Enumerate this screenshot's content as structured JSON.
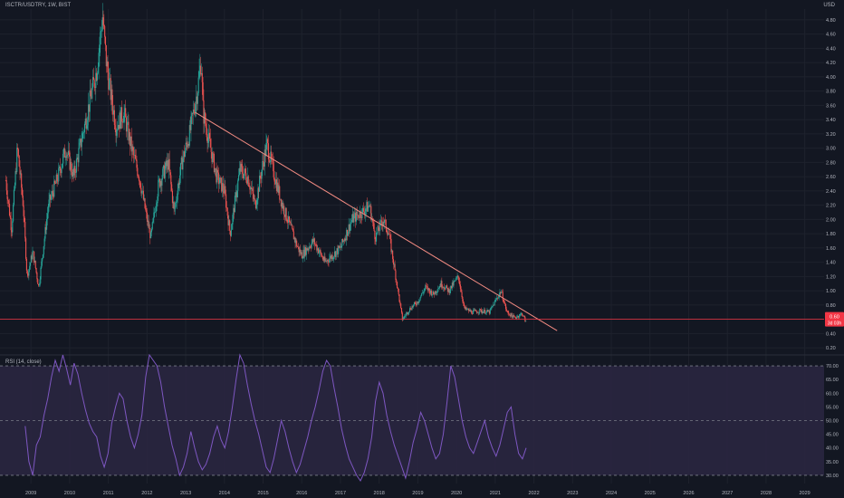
{
  "header": {
    "symbol_label": "ISCTR/USDTRY, 1W, BIST",
    "currency": "USD"
  },
  "price_badges": {
    "last": "0.60",
    "countdown": "3d 03h"
  },
  "rsi_panel": {
    "label": "RSI (14, close)"
  },
  "colors": {
    "bg": "#131722",
    "up": "#26a69a",
    "down": "#ef5350",
    "trendline": "#f28b82",
    "hline": "#f23645",
    "rsi_line": "#7e57c2",
    "rsi_band": "#2a2640",
    "grid": "#1e222d",
    "text": "#b2b5be"
  },
  "chart_data": [
    {
      "type": "candlestick",
      "title": "ISCTR/USDTRY, 1W, BIST",
      "ylabel": "USD",
      "ylim": [
        0.1,
        4.95
      ],
      "y_ticks": [
        0.2,
        0.4,
        0.6,
        0.8,
        1.0,
        1.2,
        1.4,
        1.6,
        1.8,
        2.0,
        2.2,
        2.4,
        2.6,
        2.8,
        3.0,
        3.2,
        3.4,
        3.6,
        3.8,
        4.0,
        4.2,
        4.4,
        4.6,
        4.8
      ],
      "x_ticks": [
        "2009",
        "2010",
        "2011",
        "2012",
        "2013",
        "2014",
        "2015",
        "2016",
        "2017",
        "2018",
        "2019",
        "2020",
        "2021",
        "2022",
        "2023",
        "2024",
        "2025",
        "2026",
        "2027",
        "2028",
        "2029"
      ],
      "x_tick_years": [
        2009,
        2010,
        2011,
        2012,
        2013,
        2014,
        2015,
        2016,
        2017,
        2018,
        2019,
        2020,
        2021,
        2022,
        2023,
        2024,
        2025,
        2026,
        2027,
        2028,
        2029
      ],
      "xlim": [
        2008.2,
        2029.5
      ],
      "price_path": [
        [
          2008.35,
          2.55
        ],
        [
          2008.5,
          1.85
        ],
        [
          2008.65,
          3.0
        ],
        [
          2008.8,
          2.2
        ],
        [
          2008.9,
          1.2
        ],
        [
          2009.05,
          1.55
        ],
        [
          2009.2,
          1.05
        ],
        [
          2009.45,
          2.2
        ],
        [
          2009.7,
          2.6
        ],
        [
          2009.9,
          3.0
        ],
        [
          2010.1,
          2.6
        ],
        [
          2010.3,
          3.1
        ],
        [
          2010.5,
          3.6
        ],
        [
          2010.7,
          4.1
        ],
        [
          2010.85,
          4.85
        ],
        [
          2010.95,
          4.2
        ],
        [
          2011.05,
          3.8
        ],
        [
          2011.2,
          3.3
        ],
        [
          2011.4,
          3.5
        ],
        [
          2011.6,
          3.0
        ],
        [
          2011.8,
          2.6
        ],
        [
          2012.0,
          2.0
        ],
        [
          2012.1,
          1.75
        ],
        [
          2012.3,
          2.5
        ],
        [
          2012.55,
          2.8
        ],
        [
          2012.7,
          2.1
        ],
        [
          2012.9,
          2.8
        ],
        [
          2013.1,
          3.2
        ],
        [
          2013.3,
          3.8
        ],
        [
          2013.4,
          4.25
        ],
        [
          2013.45,
          3.5
        ],
        [
          2013.6,
          3.1
        ],
        [
          2013.8,
          2.6
        ],
        [
          2014.0,
          2.4
        ],
        [
          2014.15,
          1.8
        ],
        [
          2014.4,
          2.7
        ],
        [
          2014.6,
          2.6
        ],
        [
          2014.8,
          2.2
        ],
        [
          2015.0,
          2.8
        ],
        [
          2015.1,
          3.05
        ],
        [
          2015.3,
          2.6
        ],
        [
          2015.5,
          2.2
        ],
        [
          2015.7,
          1.9
        ],
        [
          2015.9,
          1.6
        ],
        [
          2016.0,
          1.5
        ],
        [
          2016.3,
          1.7
        ],
        [
          2016.6,
          1.4
        ],
        [
          2016.8,
          1.5
        ],
        [
          2017.0,
          1.6
        ],
        [
          2017.3,
          2.0
        ],
        [
          2017.55,
          2.1
        ],
        [
          2017.75,
          2.2
        ],
        [
          2017.9,
          1.75
        ],
        [
          2018.1,
          2.0
        ],
        [
          2018.25,
          1.8
        ],
        [
          2018.4,
          1.3
        ],
        [
          2018.6,
          0.6
        ],
        [
          2018.8,
          0.75
        ],
        [
          2019.0,
          0.85
        ],
        [
          2019.2,
          1.05
        ],
        [
          2019.4,
          0.95
        ],
        [
          2019.6,
          1.1
        ],
        [
          2019.8,
          1.0
        ],
        [
          2020.05,
          1.2
        ],
        [
          2020.2,
          0.75
        ],
        [
          2020.4,
          0.7
        ],
        [
          2020.6,
          0.72
        ],
        [
          2020.85,
          0.7
        ],
        [
          2021.0,
          0.85
        ],
        [
          2021.15,
          1.0
        ],
        [
          2021.3,
          0.7
        ],
        [
          2021.5,
          0.62
        ],
        [
          2021.7,
          0.68
        ],
        [
          2021.8,
          0.55
        ]
      ],
      "trendline": {
        "from": [
          2013.25,
          3.5
        ],
        "to": [
          2022.6,
          0.44
        ]
      },
      "hline": {
        "y": 0.6
      },
      "last_price": 0.6
    },
    {
      "type": "line",
      "title": "RSI (14, close)",
      "ylim": [
        27,
        74
      ],
      "y_ticks": [
        30.0,
        35.0,
        40.0,
        45.0,
        50.0,
        55.0,
        60.0,
        65.0,
        70.0
      ],
      "band": [
        30,
        70
      ],
      "midline": 50,
      "series": [
        {
          "values": [
            48,
            35,
            30,
            41,
            44,
            52,
            58,
            66,
            72,
            68,
            74,
            69,
            63,
            71,
            67,
            60,
            54,
            49,
            46,
            44,
            37,
            33,
            38,
            49,
            55,
            60,
            58,
            50,
            44,
            40,
            45,
            52,
            66,
            74,
            72,
            70,
            64,
            55,
            48,
            41,
            36,
            30,
            33,
            38,
            46,
            40,
            35,
            32,
            34,
            38,
            44,
            48,
            43,
            40,
            46,
            55,
            65,
            74,
            71,
            63,
            56,
            50,
            45,
            39,
            33,
            31,
            36,
            43,
            50,
            46,
            40,
            35,
            31,
            34,
            39,
            44,
            50,
            55,
            61,
            68,
            72,
            70,
            62,
            55,
            47,
            41,
            36,
            33,
            30,
            28,
            31,
            36,
            44,
            57,
            64,
            60,
            52,
            46,
            41,
            37,
            33,
            29,
            35,
            42,
            47,
            53,
            50,
            45,
            40,
            36,
            38,
            45,
            57,
            70,
            66,
            58,
            50,
            44,
            40,
            38,
            42,
            46,
            50,
            44,
            40,
            37,
            41,
            47,
            53,
            55,
            45,
            38,
            36,
            40
          ]
        }
      ]
    }
  ]
}
